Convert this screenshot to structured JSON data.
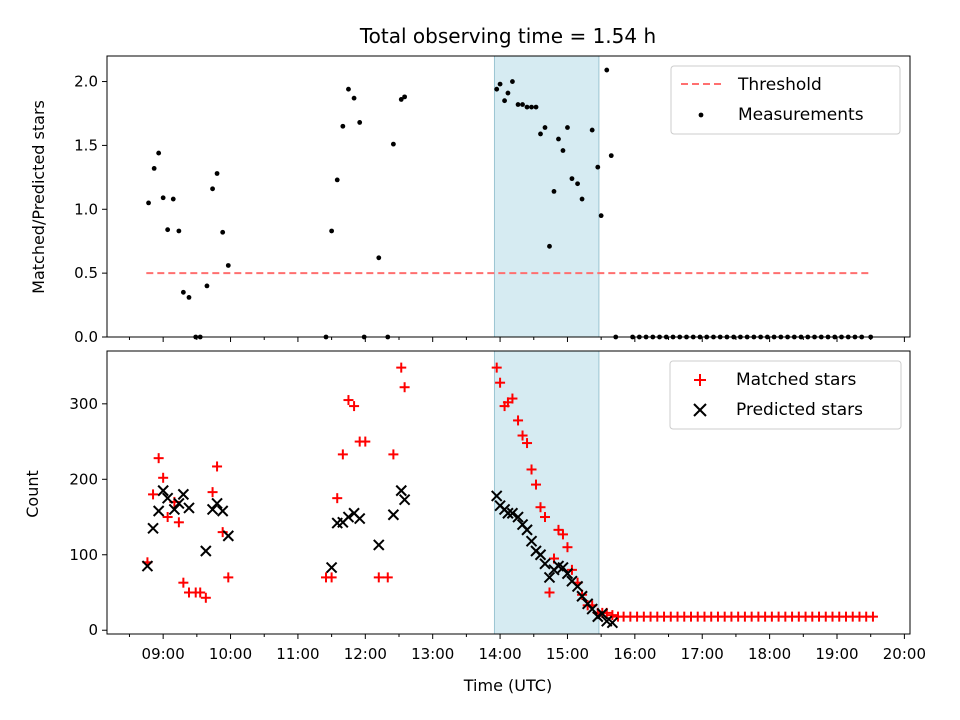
{
  "chart_data": [
    {
      "type": "scatter",
      "title": "Total observing time = 1.54 h",
      "xlabel": "",
      "ylabel": "Matched/Predicted stars",
      "ylim": [
        0,
        2.2
      ],
      "yticks": [
        "0.0",
        "0.5",
        "1.0",
        "1.5",
        "2.0"
      ],
      "shaded_interval": [
        "13:55",
        "15:28"
      ],
      "shade_color": "#add8e6",
      "legend_position": "upper right",
      "series": [
        {
          "name": "Threshold",
          "style": "dashed-line",
          "color": "#ff6f6f",
          "x": [
            "08:45",
            "19:30"
          ],
          "y": [
            0.5,
            0.5
          ]
        },
        {
          "name": "Measurements",
          "style": "dot",
          "color": "#000000",
          "points": [
            [
              "08:47",
              1.05
            ],
            [
              "08:52",
              1.32
            ],
            [
              "08:56",
              1.44
            ],
            [
              "09:00",
              1.09
            ],
            [
              "09:04",
              0.84
            ],
            [
              "09:09",
              1.08
            ],
            [
              "09:14",
              0.83
            ],
            [
              "09:18",
              0.35
            ],
            [
              "09:23",
              0.31
            ],
            [
              "09:29",
              0.0
            ],
            [
              "09:33",
              0.0
            ],
            [
              "09:39",
              0.4
            ],
            [
              "09:44",
              1.16
            ],
            [
              "09:48",
              1.28
            ],
            [
              "09:53",
              0.82
            ],
            [
              "09:58",
              0.56
            ],
            [
              "11:25",
              0.0
            ],
            [
              "11:30",
              0.83
            ],
            [
              "11:35",
              1.23
            ],
            [
              "11:40",
              1.65
            ],
            [
              "11:45",
              1.94
            ],
            [
              "11:50",
              1.87
            ],
            [
              "11:55",
              1.68
            ],
            [
              "11:59",
              0.0
            ],
            [
              "12:12",
              0.62
            ],
            [
              "12:20",
              0.0
            ],
            [
              "12:25",
              1.51
            ],
            [
              "12:32",
              1.86
            ],
            [
              "12:35",
              1.88
            ],
            [
              "13:57",
              1.94
            ],
            [
              "14:00",
              1.98
            ],
            [
              "14:04",
              1.85
            ],
            [
              "14:07",
              1.91
            ],
            [
              "14:11",
              2.0
            ],
            [
              "14:16",
              1.82
            ],
            [
              "14:20",
              1.82
            ],
            [
              "14:24",
              1.8
            ],
            [
              "14:28",
              1.8
            ],
            [
              "14:32",
              1.8
            ],
            [
              "14:36",
              1.59
            ],
            [
              "14:40",
              1.64
            ],
            [
              "14:44",
              0.71
            ],
            [
              "14:48",
              1.14
            ],
            [
              "14:52",
              1.55
            ],
            [
              "14:56",
              1.46
            ],
            [
              "15:00",
              1.64
            ],
            [
              "15:04",
              1.24
            ],
            [
              "15:09",
              1.2
            ],
            [
              "15:13",
              1.08
            ],
            [
              "15:22",
              1.62
            ],
            [
              "15:27",
              1.33
            ],
            [
              "15:30",
              0.95
            ],
            [
              "15:35",
              2.09
            ],
            [
              "15:39",
              1.42
            ],
            [
              "15:43",
              0.0
            ],
            [
              "15:58",
              0.0
            ],
            [
              "16:04",
              0.0
            ],
            [
              "16:10",
              0.0
            ],
            [
              "16:16",
              0.0
            ],
            [
              "16:22",
              0.0
            ],
            [
              "16:28",
              0.0
            ],
            [
              "16:34",
              0.0
            ],
            [
              "16:40",
              0.0
            ],
            [
              "16:46",
              0.0
            ],
            [
              "16:52",
              0.0
            ],
            [
              "16:58",
              0.0
            ],
            [
              "17:04",
              0.0
            ],
            [
              "17:10",
              0.0
            ],
            [
              "17:16",
              0.0
            ],
            [
              "17:22",
              0.0
            ],
            [
              "17:28",
              0.0
            ],
            [
              "17:34",
              0.0
            ],
            [
              "17:40",
              0.0
            ],
            [
              "17:46",
              0.0
            ],
            [
              "17:52",
              0.0
            ],
            [
              "17:58",
              0.0
            ],
            [
              "18:04",
              0.0
            ],
            [
              "18:10",
              0.0
            ],
            [
              "18:16",
              0.0
            ],
            [
              "18:22",
              0.0
            ],
            [
              "18:28",
              0.0
            ],
            [
              "18:34",
              0.0
            ],
            [
              "18:40",
              0.0
            ],
            [
              "18:46",
              0.0
            ],
            [
              "18:52",
              0.0
            ],
            [
              "18:58",
              0.0
            ],
            [
              "19:04",
              0.0
            ],
            [
              "19:10",
              0.0
            ],
            [
              "19:16",
              0.0
            ],
            [
              "19:22",
              0.0
            ],
            [
              "19:30",
              0.0
            ]
          ]
        }
      ]
    },
    {
      "type": "scatter",
      "title": "",
      "xlabel": "Time (UTC)",
      "ylabel": "Count",
      "ylim": [
        -5,
        370
      ],
      "yticks": [
        "0",
        "100",
        "200",
        "300"
      ],
      "xlim": [
        "08:10",
        "20:05"
      ],
      "xticks": [
        "09:00",
        "10:00",
        "11:00",
        "12:00",
        "13:00",
        "14:00",
        "15:00",
        "16:00",
        "17:00",
        "18:00",
        "19:00",
        "20:00"
      ],
      "shaded_interval": [
        "13:55",
        "15:28"
      ],
      "shade_color": "#add8e6",
      "legend_position": "upper right",
      "series": [
        {
          "name": "Matched stars",
          "style": "plus",
          "color": "#ff0000",
          "points": [
            [
              "08:46",
              90
            ],
            [
              "08:51",
              180
            ],
            [
              "08:56",
              228
            ],
            [
              "09:00",
              202
            ],
            [
              "09:04",
              150
            ],
            [
              "09:10",
              170
            ],
            [
              "09:14",
              143
            ],
            [
              "09:18",
              63
            ],
            [
              "09:23",
              50
            ],
            [
              "09:29",
              50
            ],
            [
              "09:33",
              50
            ],
            [
              "09:38",
              43
            ],
            [
              "09:44",
              183
            ],
            [
              "09:48",
              217
            ],
            [
              "09:53",
              130
            ],
            [
              "09:58",
              70
            ],
            [
              "11:25",
              70
            ],
            [
              "11:30",
              70
            ],
            [
              "11:35",
              175
            ],
            [
              "11:40",
              233
            ],
            [
              "11:45",
              305
            ],
            [
              "11:50",
              297
            ],
            [
              "11:55",
              250
            ],
            [
              "12:00",
              250
            ],
            [
              "12:12",
              70
            ],
            [
              "12:20",
              70
            ],
            [
              "12:25",
              233
            ],
            [
              "12:32",
              348
            ],
            [
              "12:35",
              322
            ],
            [
              "13:57",
              348
            ],
            [
              "14:00",
              328
            ],
            [
              "14:04",
              297
            ],
            [
              "14:07",
              302
            ],
            [
              "14:11",
              307
            ],
            [
              "14:16",
              278
            ],
            [
              "14:20",
              258
            ],
            [
              "14:24",
              248
            ],
            [
              "14:28",
              213
            ],
            [
              "14:32",
              193
            ],
            [
              "14:36",
              163
            ],
            [
              "14:40",
              150
            ],
            [
              "14:44",
              50
            ],
            [
              "14:48",
              95
            ],
            [
              "14:52",
              133
            ],
            [
              "14:56",
              127
            ],
            [
              "15:00",
              110
            ],
            [
              "15:04",
              80
            ],
            [
              "15:09",
              63
            ],
            [
              "15:13",
              47
            ],
            [
              "15:18",
              33
            ],
            [
              "15:22",
              33
            ],
            [
              "15:27",
              23
            ],
            [
              "15:31",
              23
            ],
            [
              "15:35",
              23
            ],
            [
              "15:40",
              20
            ],
            [
              "15:45",
              18
            ],
            [
              "15:50",
              18
            ],
            [
              "15:56",
              18
            ],
            [
              "16:02",
              18
            ],
            [
              "16:08",
              18
            ],
            [
              "16:14",
              18
            ],
            [
              "16:20",
              18
            ],
            [
              "16:26",
              18
            ],
            [
              "16:32",
              18
            ],
            [
              "16:38",
              18
            ],
            [
              "16:44",
              18
            ],
            [
              "16:50",
              18
            ],
            [
              "16:56",
              18
            ],
            [
              "17:02",
              18
            ],
            [
              "17:08",
              18
            ],
            [
              "17:14",
              18
            ],
            [
              "17:20",
              18
            ],
            [
              "17:26",
              18
            ],
            [
              "17:32",
              18
            ],
            [
              "17:38",
              18
            ],
            [
              "17:44",
              18
            ],
            [
              "17:50",
              18
            ],
            [
              "17:56",
              18
            ],
            [
              "18:02",
              18
            ],
            [
              "18:08",
              18
            ],
            [
              "18:14",
              18
            ],
            [
              "18:20",
              18
            ],
            [
              "18:26",
              18
            ],
            [
              "18:32",
              18
            ],
            [
              "18:38",
              18
            ],
            [
              "18:44",
              18
            ],
            [
              "18:50",
              18
            ],
            [
              "18:56",
              18
            ],
            [
              "19:02",
              18
            ],
            [
              "19:08",
              18
            ],
            [
              "19:14",
              18
            ],
            [
              "19:20",
              18
            ],
            [
              "19:26",
              18
            ],
            [
              "19:32",
              18
            ]
          ]
        },
        {
          "name": "Predicted stars",
          "style": "x",
          "color": "#000000",
          "points": [
            [
              "08:46",
              85
            ],
            [
              "08:51",
              135
            ],
            [
              "08:56",
              158
            ],
            [
              "09:00",
              185
            ],
            [
              "09:04",
              175
            ],
            [
              "09:10",
              160
            ],
            [
              "09:14",
              168
            ],
            [
              "09:18",
              180
            ],
            [
              "09:23",
              162
            ],
            [
              "09:38",
              105
            ],
            [
              "09:44",
              160
            ],
            [
              "09:48",
              168
            ],
            [
              "09:53",
              158
            ],
            [
              "09:58",
              125
            ],
            [
              "11:30",
              83
            ],
            [
              "11:35",
              142
            ],
            [
              "11:40",
              143
            ],
            [
              "11:45",
              150
            ],
            [
              "11:50",
              155
            ],
            [
              "11:55",
              148
            ],
            [
              "12:12",
              113
            ],
            [
              "12:25",
              153
            ],
            [
              "12:32",
              185
            ],
            [
              "12:35",
              173
            ],
            [
              "13:57",
              178
            ],
            [
              "14:00",
              165
            ],
            [
              "14:04",
              160
            ],
            [
              "14:07",
              155
            ],
            [
              "14:11",
              155
            ],
            [
              "14:16",
              150
            ],
            [
              "14:20",
              140
            ],
            [
              "14:24",
              133
            ],
            [
              "14:28",
              118
            ],
            [
              "14:32",
              105
            ],
            [
              "14:36",
              100
            ],
            [
              "14:40",
              88
            ],
            [
              "14:44",
              70
            ],
            [
              "14:48",
              80
            ],
            [
              "14:52",
              85
            ],
            [
              "14:56",
              83
            ],
            [
              "15:00",
              75
            ],
            [
              "15:04",
              65
            ],
            [
              "15:09",
              58
            ],
            [
              "15:13",
              45
            ],
            [
              "15:18",
              35
            ],
            [
              "15:22",
              28
            ],
            [
              "15:27",
              18
            ],
            [
              "15:31",
              22
            ],
            [
              "15:35",
              12
            ],
            [
              "15:40",
              10
            ]
          ]
        }
      ]
    }
  ]
}
